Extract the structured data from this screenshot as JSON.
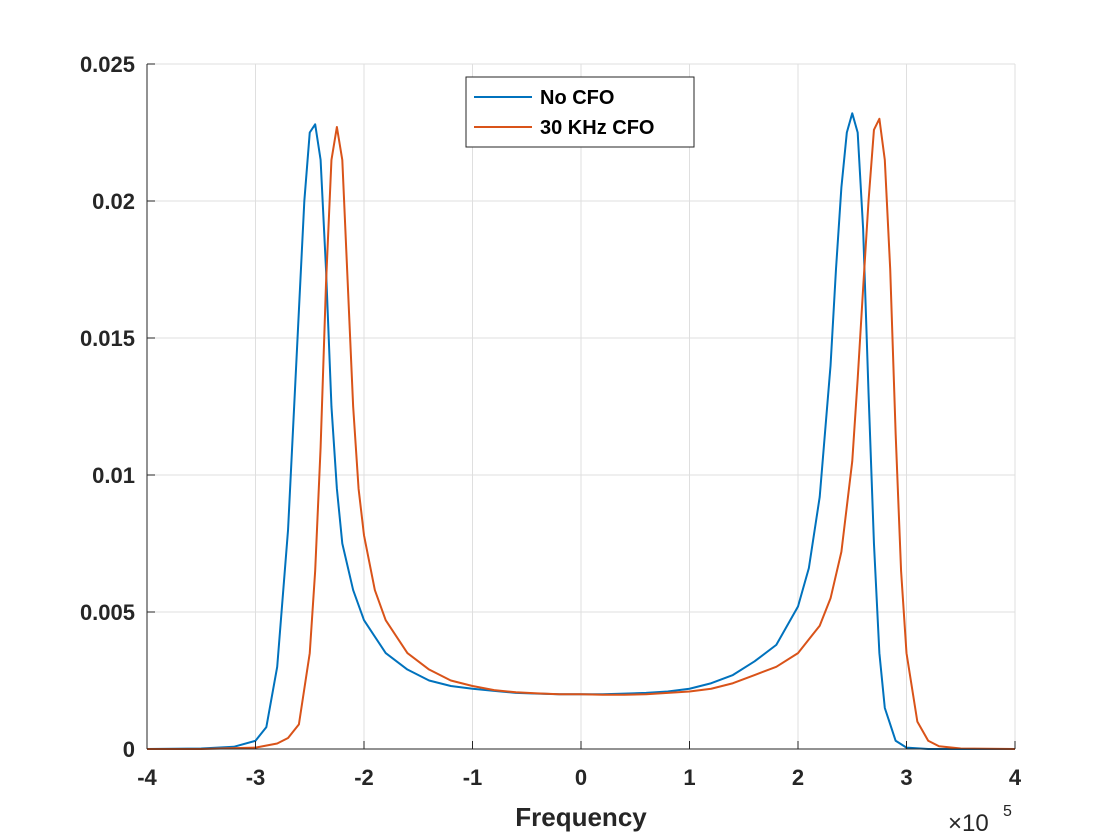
{
  "chart_data": {
    "type": "line",
    "title": "",
    "xlabel": "Frequency",
    "ylabel": "",
    "x_exponent_label": {
      "base": "×10",
      "exponent": "5"
    },
    "xlim": [
      -4,
      4
    ],
    "ylim": [
      0,
      0.025
    ],
    "x_ticks": [
      "-4",
      "-3",
      "-2",
      "-1",
      "0",
      "1",
      "2",
      "3",
      "4"
    ],
    "y_ticks": [
      "0",
      "0.005",
      "0.01",
      "0.015",
      "0.02",
      "0.025"
    ],
    "x_tick_values": [
      -4,
      -3,
      -2,
      -1,
      0,
      1,
      2,
      3,
      4
    ],
    "y_tick_values": [
      0,
      0.005,
      0.01,
      0.015,
      0.02,
      0.025
    ],
    "grid": true,
    "legend_position": "top-center",
    "series": [
      {
        "name": "No CFO",
        "color": "#0072BD",
        "x": [
          -4.0,
          -3.5,
          -3.2,
          -3.0,
          -2.9,
          -2.8,
          -2.7,
          -2.6,
          -2.55,
          -2.5,
          -2.45,
          -2.4,
          -2.35,
          -2.3,
          -2.25,
          -2.2,
          -2.1,
          -2.0,
          -1.8,
          -1.6,
          -1.4,
          -1.2,
          -1.0,
          -0.8,
          -0.6,
          -0.4,
          -0.2,
          0.0,
          0.2,
          0.4,
          0.6,
          0.8,
          1.0,
          1.2,
          1.4,
          1.6,
          1.8,
          2.0,
          2.1,
          2.2,
          2.3,
          2.35,
          2.4,
          2.45,
          2.5,
          2.55,
          2.6,
          2.65,
          2.7,
          2.75,
          2.8,
          2.9,
          3.0,
          3.2,
          3.5,
          4.0
        ],
        "y": [
          0.0,
          2e-05,
          8e-05,
          0.0003,
          0.0008,
          0.003,
          0.008,
          0.016,
          0.02,
          0.0225,
          0.0228,
          0.0215,
          0.0175,
          0.0125,
          0.0095,
          0.0075,
          0.0058,
          0.0047,
          0.0035,
          0.0029,
          0.0025,
          0.0023,
          0.0022,
          0.00212,
          0.00205,
          0.00202,
          0.002,
          0.002,
          0.002,
          0.00202,
          0.00205,
          0.0021,
          0.0022,
          0.0024,
          0.0027,
          0.0032,
          0.0038,
          0.0052,
          0.0066,
          0.0092,
          0.014,
          0.0175,
          0.0205,
          0.0225,
          0.0232,
          0.0225,
          0.019,
          0.013,
          0.0075,
          0.0035,
          0.0015,
          0.0003,
          5e-05,
          0.0,
          0.0,
          0.0
        ]
      },
      {
        "name": "30 KHz CFO",
        "color": "#D95319",
        "x": [
          -4.0,
          -3.5,
          -3.0,
          -2.8,
          -2.7,
          -2.6,
          -2.5,
          -2.45,
          -2.4,
          -2.35,
          -2.3,
          -2.25,
          -2.2,
          -2.15,
          -2.1,
          -2.05,
          -2.0,
          -1.9,
          -1.8,
          -1.6,
          -1.4,
          -1.2,
          -1.0,
          -0.8,
          -0.6,
          -0.4,
          -0.2,
          0.0,
          0.2,
          0.4,
          0.6,
          0.8,
          1.0,
          1.2,
          1.4,
          1.6,
          1.8,
          2.0,
          2.2,
          2.3,
          2.4,
          2.5,
          2.55,
          2.6,
          2.65,
          2.7,
          2.75,
          2.8,
          2.85,
          2.9,
          2.95,
          3.0,
          3.1,
          3.2,
          3.3,
          3.5,
          4.0
        ],
        "y": [
          0.0,
          0.0,
          5e-05,
          0.0002,
          0.0004,
          0.0009,
          0.0035,
          0.0065,
          0.011,
          0.017,
          0.0215,
          0.0227,
          0.0215,
          0.017,
          0.0125,
          0.0095,
          0.0078,
          0.0058,
          0.0047,
          0.0035,
          0.0029,
          0.0025,
          0.0023,
          0.00215,
          0.00207,
          0.00203,
          0.002,
          0.002,
          0.00198,
          0.00198,
          0.002,
          0.00205,
          0.0021,
          0.0022,
          0.0024,
          0.0027,
          0.003,
          0.0035,
          0.0045,
          0.0055,
          0.0072,
          0.0105,
          0.0135,
          0.0168,
          0.02,
          0.0226,
          0.023,
          0.0215,
          0.0175,
          0.0115,
          0.0065,
          0.0035,
          0.001,
          0.0003,
          0.0001,
          2e-05,
          0.0
        ]
      }
    ]
  }
}
